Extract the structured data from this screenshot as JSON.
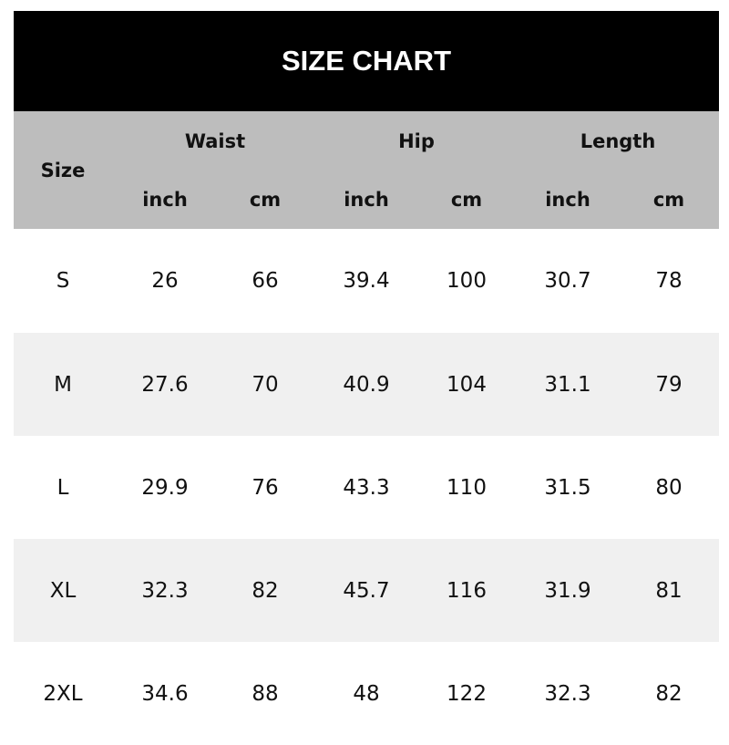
{
  "title": "SIZE CHART",
  "header": {
    "size": "Size",
    "groups": [
      "Waist",
      "Hip",
      "Length"
    ],
    "units": [
      "inch",
      "cm",
      "inch",
      "cm",
      "inch",
      "cm"
    ]
  },
  "rows": [
    [
      "S",
      "26",
      "66",
      "39.4",
      "100",
      "30.7",
      "78"
    ],
    [
      "M",
      "27.6",
      "70",
      "40.9",
      "104",
      "31.1",
      "79"
    ],
    [
      "L",
      "29.9",
      "76",
      "43.3",
      "110",
      "31.5",
      "80"
    ],
    [
      "XL",
      "32.3",
      "82",
      "45.7",
      "116",
      "31.9",
      "81"
    ],
    [
      "2XL",
      "34.6",
      "88",
      "48",
      "122",
      "32.3",
      "82"
    ]
  ],
  "colors": {
    "title_bg": "#000000",
    "header_bg": "#bdbdbd",
    "alt_row_bg": "#f0f0f0"
  }
}
